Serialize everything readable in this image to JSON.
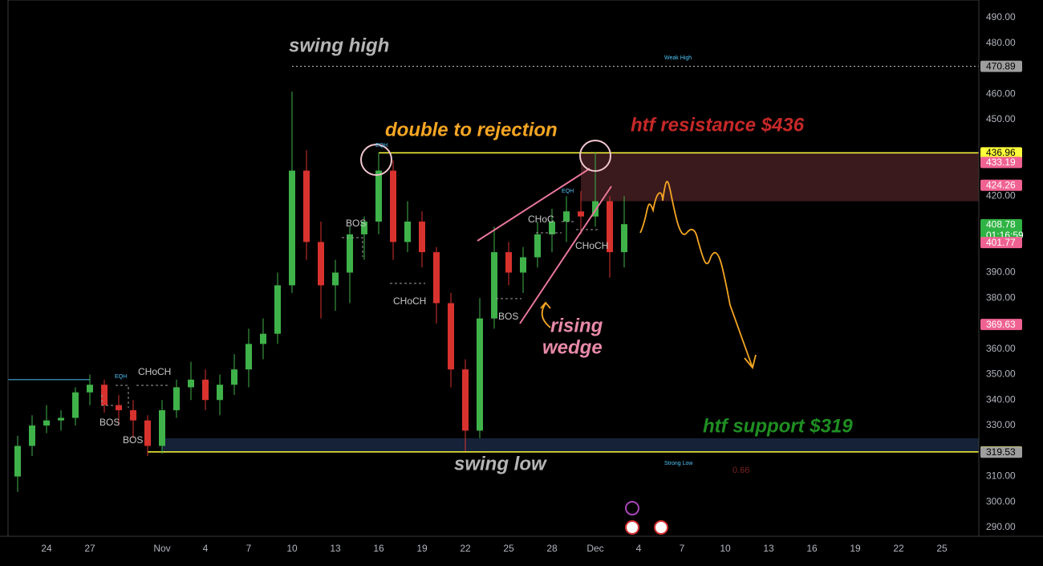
{
  "chart_data": {
    "type": "candlestick",
    "categories": [
      null,
      null,
      "24",
      null,
      null,
      "27",
      null,
      null,
      null,
      null,
      "Nov",
      null,
      null,
      "4",
      null,
      null,
      "7",
      null,
      null,
      "10",
      null,
      null,
      "13",
      null,
      null,
      "16",
      null,
      null,
      "19",
      null,
      null,
      "22",
      null,
      null,
      "25",
      null,
      null,
      "28",
      null,
      null,
      "Dec",
      null,
      null,
      "4",
      null,
      null,
      "7",
      null,
      null,
      "10",
      null,
      null,
      "13",
      null,
      null,
      "16",
      null,
      null,
      "19",
      null,
      null,
      "22",
      null,
      null,
      "25"
    ],
    "open": [
      310,
      322,
      330,
      332,
      333,
      343,
      346,
      338,
      336,
      332,
      322,
      336,
      345,
      348,
      340,
      346,
      352,
      362,
      366,
      385,
      430,
      402,
      385,
      390,
      405,
      410,
      430,
      402,
      410,
      398,
      378,
      352,
      328,
      372,
      398,
      390,
      396,
      405,
      410,
      414,
      412,
      418,
      398,
      null,
      null,
      null,
      null,
      null,
      null,
      null,
      null,
      null,
      null,
      null,
      null,
      null,
      null,
      null,
      null,
      null,
      null,
      null,
      null,
      null,
      null
    ],
    "high": [
      326,
      334,
      338,
      336,
      345,
      350,
      348,
      342,
      340,
      334,
      340,
      348,
      355,
      352,
      350,
      358,
      368,
      372,
      390,
      461,
      438,
      410,
      395,
      408,
      412,
      437,
      434,
      418,
      414,
      400,
      382,
      356,
      380,
      408,
      402,
      400,
      410,
      415,
      420,
      422,
      437,
      420,
      420,
      null,
      null,
      null,
      null,
      null,
      null,
      null,
      null,
      null,
      null,
      null,
      null,
      null,
      null,
      null,
      null,
      null,
      null,
      null,
      null,
      null,
      null
    ],
    "low": [
      304,
      318,
      327,
      328,
      330,
      338,
      335,
      330,
      325,
      318,
      319,
      333,
      340,
      336,
      334,
      342,
      345,
      356,
      362,
      382,
      395,
      372,
      375,
      378,
      395,
      405,
      395,
      398,
      392,
      370,
      345,
      320,
      325,
      368,
      385,
      382,
      392,
      398,
      402,
      405,
      408,
      388,
      392,
      null,
      null,
      null,
      null,
      null,
      null,
      null,
      null,
      null,
      null,
      null,
      null,
      null,
      null,
      null,
      null,
      null,
      null,
      null,
      null,
      null,
      null
    ],
    "close": [
      322,
      330,
      332,
      333,
      343,
      346,
      338,
      336,
      332,
      322,
      336,
      345,
      348,
      340,
      346,
      352,
      362,
      366,
      385,
      430,
      402,
      385,
      390,
      405,
      410,
      430,
      402,
      410,
      398,
      378,
      352,
      328,
      372,
      398,
      390,
      396,
      405,
      410,
      414,
      412,
      418,
      398,
      409,
      null,
      null,
      null,
      null,
      null,
      null,
      null,
      null,
      null,
      null,
      null,
      null,
      null,
      null,
      null,
      null,
      null,
      null,
      null,
      null,
      null,
      null
    ],
    "up_color": "#3fb24a",
    "down_color": "#d8322e",
    "ylim": [
      286.54,
      496.93
    ],
    "yticks": [
      {
        "value": 490,
        "label": "490.00"
      },
      {
        "value": 480,
        "label": "480.00"
      },
      {
        "value": 460,
        "label": "460.00"
      },
      {
        "value": 450,
        "label": "450.00"
      },
      {
        "value": 420,
        "label": "420.00"
      },
      {
        "value": 390,
        "label": "390.00"
      },
      {
        "value": 380,
        "label": "380.00"
      },
      {
        "value": 360,
        "label": "360.00"
      },
      {
        "value": 350,
        "label": "350.00"
      },
      {
        "value": 340,
        "label": "340.00"
      },
      {
        "value": 330,
        "label": "330.00"
      },
      {
        "value": 310,
        "label": "310.00"
      },
      {
        "value": 300,
        "label": "300.00"
      },
      {
        "value": 290,
        "label": "290.00"
      }
    ],
    "price_labels": [
      {
        "value": 470.89,
        "color": "#9e9e9e"
      },
      {
        "value": 436.96,
        "color": "#ffff3b"
      },
      {
        "value": 433.19,
        "color": "#f06292"
      },
      {
        "value": 424.26,
        "color": "#f06292"
      },
      {
        "value": 408.78,
        "color": "#2fb344"
      },
      {
        "value": 401.77,
        "color": "#f06292"
      },
      {
        "value": 369.63,
        "color": "#f06292"
      },
      {
        "value": 319.65,
        "color": "#ffff3b"
      },
      {
        "value": 319.53,
        "color": "#9e9e9e"
      }
    ],
    "countdown": "01:16:59",
    "resistance_zone": [
      418,
      436.96
    ],
    "support_zone": [
      319.65,
      325
    ],
    "liquidity_level": 348,
    "annotations": {
      "swing_high": "swing high",
      "double_rejection": "double to rejection",
      "resistance": "htf resistance $436",
      "rising_wedge": [
        "rising",
        "wedge"
      ],
      "support": "htf support $319",
      "swing_low": "swing low"
    },
    "labels": [
      "EQH",
      "CHoCH",
      "BOS",
      "BOS",
      "BOS",
      "CHoCH",
      "EQH",
      "BOS",
      "CHoC",
      "EQH",
      "CHoCH",
      "Weak High",
      "Strong Low",
      "0.66"
    ]
  }
}
